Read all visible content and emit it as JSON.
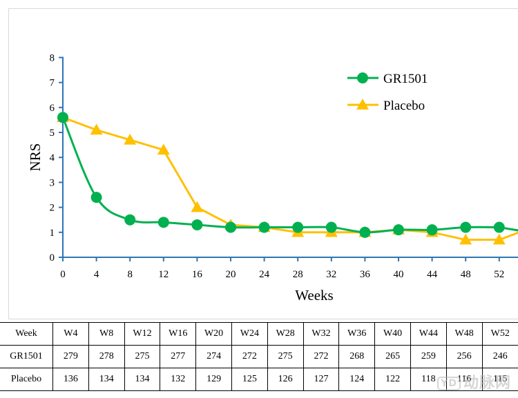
{
  "chart_data": {
    "type": "line",
    "xlabel": "Weeks",
    "ylabel": "NRS",
    "xlim": [
      0,
      54
    ],
    "ylim": [
      0,
      8
    ],
    "x_ticks": [
      0,
      4,
      8,
      12,
      16,
      20,
      24,
      28,
      32,
      36,
      40,
      44,
      48,
      52
    ],
    "y_ticks": [
      0,
      1,
      2,
      3,
      4,
      5,
      6,
      7,
      8
    ],
    "legend_position": "top-right",
    "series": [
      {
        "name": "GR1501",
        "color": "#00b050",
        "marker": "circle",
        "smooth": true,
        "x": [
          0,
          4,
          8,
          12,
          16,
          20,
          24,
          28,
          32,
          36,
          40,
          44,
          48,
          52
        ],
        "values": [
          5.6,
          2.4,
          1.5,
          1.4,
          1.3,
          1.2,
          1.2,
          1.2,
          1.2,
          1.0,
          1.1,
          1.1,
          1.2,
          1.2
        ]
      },
      {
        "name": "Placebo",
        "color": "#ffc000",
        "marker": "triangle",
        "smooth": false,
        "x": [
          0,
          4,
          8,
          12,
          16,
          20,
          24,
          28,
          32,
          36,
          40,
          44,
          48,
          52
        ],
        "values": [
          5.6,
          5.1,
          4.7,
          4.3,
          2.0,
          1.3,
          1.2,
          1.0,
          1.0,
          1.0,
          1.1,
          1.0,
          0.7,
          0.7
        ]
      }
    ]
  },
  "table": {
    "header": [
      "Week",
      "W4",
      "W8",
      "W12",
      "W16",
      "W20",
      "W24",
      "W28",
      "W32",
      "W36",
      "W40",
      "W44",
      "W48",
      "W52"
    ],
    "rows": [
      {
        "label": "GR1501",
        "values": [
          "279",
          "278",
          "275",
          "277",
          "274",
          "272",
          "275",
          "272",
          "268",
          "265",
          "259",
          "256",
          "246"
        ]
      },
      {
        "label": "Placebo",
        "values": [
          "136",
          "134",
          "134",
          "132",
          "129",
          "125",
          "126",
          "127",
          "124",
          "122",
          "118",
          "116",
          "115"
        ]
      }
    ]
  },
  "watermark": {
    "badge": "YD",
    "text": "动脉网"
  },
  "colors": {
    "axis": "#2e75b6",
    "frame": "#d9d9d9"
  }
}
